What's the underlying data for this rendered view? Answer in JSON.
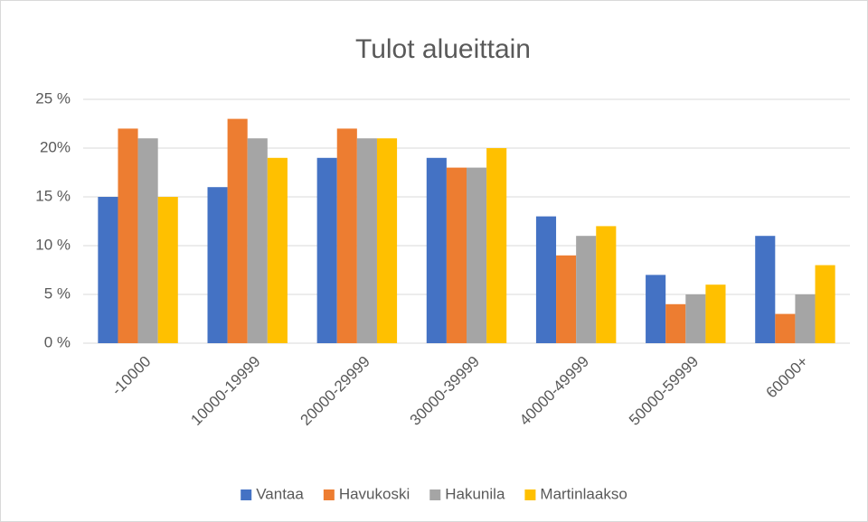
{
  "chart_data": {
    "type": "bar",
    "title": "Tulot alueittain",
    "categories": [
      "-10000",
      "10000-19999",
      "20000-29999",
      "30000-39999",
      "40000-49999",
      "50000-59999",
      "60000+"
    ],
    "series": [
      {
        "name": "Vantaa",
        "color": "#4472c4",
        "values": [
          15,
          16,
          19,
          19,
          13,
          7,
          11
        ]
      },
      {
        "name": "Havukoski",
        "color": "#ed7d31",
        "values": [
          22,
          23,
          22,
          18,
          9,
          4,
          3
        ]
      },
      {
        "name": "Hakunila",
        "color": "#a5a5a5",
        "values": [
          21,
          21,
          21,
          18,
          11,
          5,
          5
        ]
      },
      {
        "name": "Martinlaakso",
        "color": "#ffc000",
        "values": [
          15,
          19,
          21,
          20,
          12,
          6,
          8
        ]
      }
    ],
    "ylim": [
      0,
      25
    ],
    "yticks": [
      {
        "value": 0,
        "label": "0 %"
      },
      {
        "value": 5,
        "label": "5 %"
      },
      {
        "value": 10,
        "label": "10 %"
      },
      {
        "value": 15,
        "label": "15 %"
      },
      {
        "value": 20,
        "label": "20%"
      },
      {
        "value": 25,
        "label": "25 %"
      }
    ],
    "grid": true,
    "legend": "bottom"
  }
}
